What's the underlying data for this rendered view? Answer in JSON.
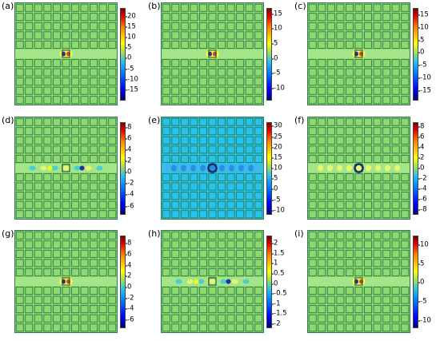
{
  "panels": [
    {
      "label": "(a)",
      "ticks": [
        "20",
        "15",
        "10",
        "5",
        "0",
        "-5",
        "-10",
        "-15"
      ],
      "min": -20,
      "max": 24,
      "bg": "#8ed870",
      "mode": "single"
    },
    {
      "label": "(b)",
      "ticks": [
        "15",
        "10",
        "5",
        "0",
        "-5",
        "-10"
      ],
      "min": -14,
      "max": 17,
      "bg": "#8ed870",
      "mode": "single"
    },
    {
      "label": "(c)",
      "ticks": [
        "15",
        "10",
        "5",
        "0",
        "-5",
        "-10",
        "-15"
      ],
      "min": -19,
      "max": 18,
      "bg": "#8ed870",
      "mode": "single"
    },
    {
      "label": "(d)",
      "ticks": [
        "8",
        "6",
        "4",
        "2",
        "0",
        "-2",
        "-4",
        "-6"
      ],
      "min": -7.5,
      "max": 9,
      "bg": "#8ed870",
      "mode": "dual"
    },
    {
      "label": "(e)",
      "ticks": [
        "30",
        "25",
        "20",
        "15",
        "10",
        "5",
        "0",
        "-5",
        "-10"
      ],
      "min": -12,
      "max": 32,
      "bg": "#27c3ef",
      "mode": "ring"
    },
    {
      "label": "(f)",
      "ticks": [
        "8",
        "6",
        "4",
        "2",
        "0",
        "-2",
        "-4",
        "-6",
        "-8"
      ],
      "min": -9,
      "max": 9,
      "bg": "#8ed870",
      "mode": "ring"
    },
    {
      "label": "(g)",
      "ticks": [
        "8",
        "6",
        "4",
        "2",
        "0",
        "-2",
        "-4",
        "-6"
      ],
      "min": -7.5,
      "max": 9.5,
      "bg": "#8ed870",
      "mode": "single"
    },
    {
      "label": "(h)",
      "ticks": [
        "2",
        "1.5",
        "1",
        "0.5",
        "0",
        "-0.5",
        "-1",
        "-1.5",
        "-2"
      ],
      "min": -2.2,
      "max": 2.4,
      "bg": "#8ed870",
      "mode": "dual"
    },
    {
      "label": "(i)",
      "ticks": [
        "10",
        "5",
        "0",
        "-5",
        "-10"
      ],
      "min": -12,
      "max": 12.5,
      "bg": "#8ed870",
      "mode": "single"
    }
  ],
  "colors": {
    "lattice": "#2f7a4c",
    "waveguide_light": "#b8f0a0",
    "accent_red": "#c0392b",
    "accent_blue": "#1a1aa8"
  }
}
